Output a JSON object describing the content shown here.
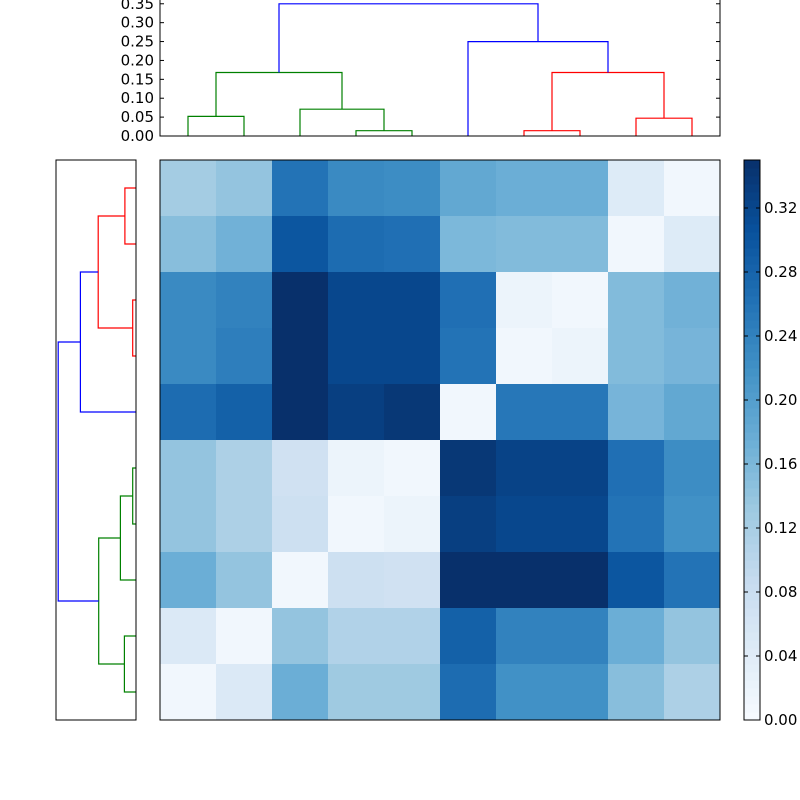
{
  "chart_data": {
    "type": "heatmap",
    "colormap": "Blues",
    "colorbar": {
      "min": 0.0,
      "max": 0.35,
      "ticks": [
        0.0,
        0.04,
        0.08,
        0.12,
        0.16,
        0.2,
        0.24,
        0.28,
        0.32
      ],
      "tick_labels": [
        "0.00",
        "0.04",
        "0.08",
        "0.12",
        "0.16",
        "0.20",
        "0.24",
        "0.28",
        "0.32"
      ]
    },
    "matrix": [
      [
        0.125,
        0.14,
        0.26,
        0.23,
        0.225,
        0.185,
        0.175,
        0.175,
        0.045,
        0.01
      ],
      [
        0.15,
        0.17,
        0.3,
        0.27,
        0.265,
        0.16,
        0.155,
        0.155,
        0.01,
        0.045
      ],
      [
        0.23,
        0.24,
        0.35,
        0.32,
        0.32,
        0.265,
        0.02,
        0.01,
        0.155,
        0.17
      ],
      [
        0.23,
        0.245,
        0.35,
        0.32,
        0.32,
        0.26,
        0.01,
        0.02,
        0.155,
        0.165
      ],
      [
        0.27,
        0.285,
        0.35,
        0.33,
        0.34,
        0.01,
        0.255,
        0.255,
        0.165,
        0.185
      ],
      [
        0.14,
        0.115,
        0.07,
        0.02,
        0.01,
        0.34,
        0.325,
        0.325,
        0.265,
        0.225
      ],
      [
        0.14,
        0.115,
        0.075,
        0.01,
        0.02,
        0.33,
        0.32,
        0.32,
        0.26,
        0.22
      ],
      [
        0.175,
        0.14,
        0.01,
        0.075,
        0.07,
        0.35,
        0.35,
        0.35,
        0.3,
        0.26
      ],
      [
        0.05,
        0.01,
        0.14,
        0.11,
        0.11,
        0.285,
        0.24,
        0.24,
        0.175,
        0.14
      ],
      [
        0.01,
        0.05,
        0.175,
        0.13,
        0.13,
        0.27,
        0.22,
        0.22,
        0.15,
        0.115
      ]
    ],
    "top_dendrogram": {
      "ylim": [
        0.0,
        0.36
      ],
      "yticks": [
        0.0,
        0.05,
        0.1,
        0.15,
        0.2,
        0.25,
        0.3,
        0.35
      ],
      "ytick_labels": [
        "0.00",
        "0.05",
        "0.10",
        "0.15",
        "0.20",
        "0.25",
        "0.30",
        "0.35"
      ],
      "links": [
        {
          "x": [
            5,
            5,
            15,
            15
          ],
          "y": [
            0.0,
            0.052,
            0.052,
            0.0
          ],
          "color": "#008000"
        },
        {
          "x": [
            35,
            35,
            45,
            45
          ],
          "y": [
            0.0,
            0.014,
            0.014,
            0.0
          ],
          "color": "#008000"
        },
        {
          "x": [
            25,
            25,
            40,
            40
          ],
          "y": [
            0.0,
            0.071,
            0.071,
            0.014
          ],
          "color": "#008000"
        },
        {
          "x": [
            10,
            10,
            32.5,
            32.5
          ],
          "y": [
            0.052,
            0.168,
            0.168,
            0.071
          ],
          "color": "#008000"
        },
        {
          "x": [
            65,
            65,
            75,
            75
          ],
          "y": [
            0.0,
            0.014,
            0.014,
            0.0
          ],
          "color": "#ff0000"
        },
        {
          "x": [
            85,
            85,
            95,
            95
          ],
          "y": [
            0.0,
            0.047,
            0.047,
            0.0
          ],
          "color": "#ff0000"
        },
        {
          "x": [
            70,
            70,
            90,
            90
          ],
          "y": [
            0.014,
            0.168,
            0.168,
            0.047
          ],
          "color": "#ff0000"
        },
        {
          "x": [
            55,
            55,
            80,
            80
          ],
          "y": [
            0.0,
            0.25,
            0.25,
            0.168
          ],
          "color": "#0000ff"
        },
        {
          "x": [
            21.25,
            21.25,
            67.5,
            67.5
          ],
          "y": [
            0.168,
            0.35,
            0.35,
            0.25
          ],
          "color": "#0000ff"
        }
      ]
    },
    "left_dendrogram": {
      "links": [
        {
          "pos": [
            5,
            5,
            15,
            15
          ],
          "h": [
            0.0,
            0.05,
            0.05,
            0.0
          ],
          "color": "#ff0000"
        },
        {
          "pos": [
            25,
            25,
            35,
            35
          ],
          "h": [
            0.0,
            0.015,
            0.015,
            0.0
          ],
          "color": "#ff0000"
        },
        {
          "pos": [
            10,
            10,
            30,
            30
          ],
          "h": [
            0.05,
            0.17,
            0.17,
            0.015
          ],
          "color": "#ff0000"
        },
        {
          "pos": [
            20,
            20,
            45,
            45
          ],
          "h": [
            0.17,
            0.25,
            0.25,
            0.0
          ],
          "color": "#0000ff"
        },
        {
          "pos": [
            55,
            55,
            65,
            65
          ],
          "h": [
            0.0,
            0.015,
            0.015,
            0.0
          ],
          "color": "#008000"
        },
        {
          "pos": [
            60,
            60,
            75,
            75
          ],
          "h": [
            0.015,
            0.07,
            0.07,
            0.0
          ],
          "color": "#008000"
        },
        {
          "pos": [
            85,
            85,
            95,
            95
          ],
          "h": [
            0.0,
            0.052,
            0.052,
            0.0
          ],
          "color": "#008000"
        },
        {
          "pos": [
            67.5,
            67.5,
            90,
            90
          ],
          "h": [
            0.07,
            0.168,
            0.168,
            0.052
          ],
          "color": "#008000"
        },
        {
          "pos": [
            32.5,
            32.5,
            78.75,
            78.75
          ],
          "h": [
            0.25,
            0.35,
            0.35,
            0.168
          ],
          "color": "#0000ff"
        }
      ]
    }
  }
}
